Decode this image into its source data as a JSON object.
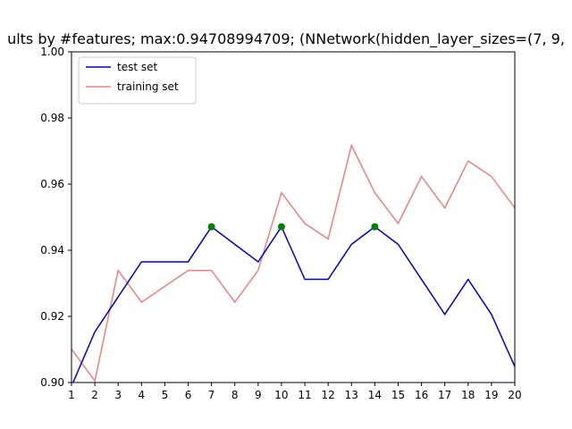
{
  "chart_data": {
    "type": "line",
    "title": "ults by #features; max:0.94708994709; (NNetwork(hidden_layer_sizes=(7, 9,",
    "xlabel": "",
    "ylabel": "",
    "x": [
      1,
      2,
      3,
      4,
      5,
      6,
      7,
      8,
      9,
      10,
      11,
      12,
      13,
      14,
      15,
      16,
      17,
      18,
      19,
      20
    ],
    "xlim": [
      1,
      20
    ],
    "ylim": [
      0.9,
      1.0
    ],
    "xticks": [
      "1",
      "2",
      "3",
      "4",
      "5",
      "6",
      "7",
      "8",
      "9",
      "10",
      "11",
      "12",
      "13",
      "14",
      "15",
      "16",
      "17",
      "18",
      "19",
      "20"
    ],
    "yticks": [
      "0.90",
      "0.92",
      "0.94",
      "0.96",
      "0.98",
      "1.00"
    ],
    "grid": false,
    "legend_position": "top-left",
    "series": [
      {
        "name": "test set",
        "color": "#0000cc",
        "values": [
          0.8989,
          0.9153,
          0.9259,
          0.9365,
          0.9365,
          0.9365,
          0.9471,
          0.9418,
          0.9365,
          0.9471,
          0.9312,
          0.9312,
          0.9418,
          0.9471,
          0.9418,
          0.9312,
          0.9206,
          0.9312,
          0.9206,
          0.9048
        ]
      },
      {
        "name": "training set",
        "color": "#f08080",
        "values": [
          0.9101,
          0.9005,
          0.9339,
          0.9243,
          0.9291,
          0.9339,
          0.9339,
          0.9243,
          0.9339,
          0.9574,
          0.9481,
          0.9434,
          0.9717,
          0.9574,
          0.9481,
          0.9623,
          0.9528,
          0.967,
          0.9623,
          0.9528
        ]
      }
    ],
    "markers": {
      "color": "#008000",
      "x": [
        7,
        10,
        14
      ],
      "y": [
        0.9471,
        0.9471,
        0.9471
      ]
    }
  }
}
